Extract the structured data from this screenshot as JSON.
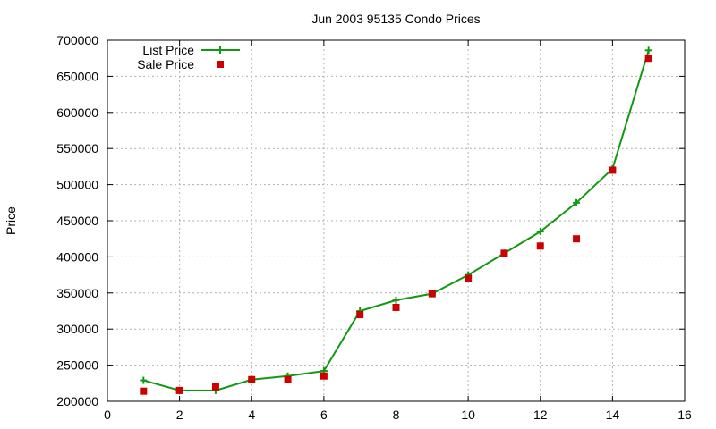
{
  "chart_data": {
    "type": "line",
    "title": "Jun 2003 95135 Condo Prices",
    "xlabel": "",
    "ylabel": "Price",
    "xlim": [
      0,
      16
    ],
    "ylim": [
      200000,
      700000
    ],
    "x_ticks": [
      0,
      2,
      4,
      6,
      8,
      10,
      12,
      14,
      16
    ],
    "y_ticks": [
      200000,
      250000,
      300000,
      350000,
      400000,
      450000,
      500000,
      550000,
      600000,
      650000,
      700000
    ],
    "grid": true,
    "legend_position": "top-left",
    "series": [
      {
        "name": "List Price",
        "style": "line-with-plus-markers",
        "color": "#119911",
        "x": [
          1,
          2,
          3,
          4,
          5,
          6,
          7,
          8,
          9,
          10,
          11,
          12,
          13,
          14,
          15
        ],
        "y": [
          229000,
          215000,
          215000,
          230000,
          235000,
          242000,
          325000,
          340000,
          349000,
          375000,
          405000,
          435000,
          475000,
          522000,
          686000
        ]
      },
      {
        "name": "Sale Price",
        "style": "square-markers",
        "color": "#cc0000",
        "x": [
          1,
          2,
          3,
          4,
          5,
          6,
          7,
          8,
          9,
          10,
          11,
          12,
          13,
          14,
          15
        ],
        "y": [
          214000,
          215000,
          220000,
          230000,
          230000,
          235000,
          320000,
          330000,
          349000,
          370000,
          405000,
          415000,
          425000,
          520000,
          675000
        ]
      }
    ]
  }
}
